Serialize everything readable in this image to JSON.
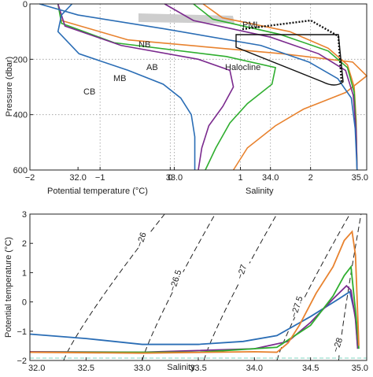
{
  "chart_data": [
    {
      "type": "line",
      "panel": "top",
      "ylabel": "Pressure (dbar)",
      "x_bottom_label": "Potential temperature (°C)",
      "x_top_label": "Salinity",
      "temperature_ticks": [
        "−2",
        "−1",
        "0",
        "1",
        "2"
      ],
      "salinity_ticks": [
        "32.0",
        "33.0",
        "34.0",
        "35.0"
      ],
      "pressure_ticks": [
        "0",
        "200",
        "400",
        "600"
      ],
      "ylim": [
        0,
        600
      ],
      "temperature_xlim": [
        -2,
        2.8
      ],
      "salinity_xlim": [
        31.5,
        35
      ],
      "grid": true,
      "annotations": [
        {
          "text": "NB",
          "color": "#e8822e"
        },
        {
          "text": "AB",
          "color": "#2fae2f"
        },
        {
          "text": "MB",
          "color": "#7b2a8e"
        },
        {
          "text": "CB",
          "color": "#2a6db5"
        },
        {
          "text": "PML",
          "color": "#111111"
        },
        {
          "text": "Halocline",
          "color": "#111111"
        }
      ],
      "series": [
        {
          "color": "#e8822e",
          "temperature_profile": [
            [
              -1.6,
              0
            ],
            [
              -1.55,
              60
            ],
            [
              -0.6,
              130
            ],
            [
              1.6,
              180
            ],
            [
              2.6,
              210
            ],
            [
              2.8,
              260
            ],
            [
              2.5,
              320
            ],
            [
              1.9,
              380
            ],
            [
              1.5,
              440
            ],
            [
              1.1,
              520
            ],
            [
              0.9,
              600
            ]
          ],
          "salinity_profile": [
            [
              33.3,
              0
            ],
            [
              33.5,
              50
            ],
            [
              34.2,
              100
            ],
            [
              34.6,
              160
            ],
            [
              34.8,
              220
            ],
            [
              34.87,
              300
            ],
            [
              34.89,
              420
            ],
            [
              34.9,
              600
            ]
          ]
        },
        {
          "color": "#2fae2f",
          "temperature_profile": [
            [
              -1.6,
              0
            ],
            [
              -1.55,
              70
            ],
            [
              -0.8,
              140
            ],
            [
              0.8,
              190
            ],
            [
              1.5,
              230
            ],
            [
              1.45,
              290
            ],
            [
              1.1,
              360
            ],
            [
              0.85,
              430
            ],
            [
              0.65,
              520
            ],
            [
              0.5,
              600
            ]
          ],
          "salinity_profile": [
            [
              33.2,
              0
            ],
            [
              33.4,
              55
            ],
            [
              34.1,
              110
            ],
            [
              34.6,
              170
            ],
            [
              34.8,
              230
            ],
            [
              34.87,
              320
            ],
            [
              34.89,
              450
            ],
            [
              34.9,
              600
            ]
          ]
        },
        {
          "color": "#7b2a8e",
          "temperature_profile": [
            [
              -1.6,
              0
            ],
            [
              -1.5,
              80
            ],
            [
              -0.7,
              150
            ],
            [
              0.4,
              200
            ],
            [
              0.85,
              240
            ],
            [
              0.9,
              300
            ],
            [
              0.75,
              370
            ],
            [
              0.55,
              440
            ],
            [
              0.45,
              520
            ],
            [
              0.4,
              600
            ]
          ],
          "salinity_profile": [
            [
              32.9,
              0
            ],
            [
              33.2,
              60
            ],
            [
              34.0,
              120
            ],
            [
              34.5,
              180
            ],
            [
              34.78,
              240
            ],
            [
              34.86,
              330
            ],
            [
              34.89,
              460
            ],
            [
              34.9,
              600
            ]
          ]
        },
        {
          "color": "#2a6db5",
          "temperature_profile": [
            [
              -1.4,
              0
            ],
            [
              -1.55,
              40
            ],
            [
              -1.6,
              100
            ],
            [
              -1.3,
              180
            ],
            [
              -0.6,
              240
            ],
            [
              -0.1,
              290
            ],
            [
              0.15,
              340
            ],
            [
              0.3,
              400
            ],
            [
              0.35,
              480
            ],
            [
              0.35,
              600
            ]
          ],
          "salinity_profile": [
            [
              31.6,
              0
            ],
            [
              32.0,
              40
            ],
            [
              32.9,
              90
            ],
            [
              33.9,
              150
            ],
            [
              34.4,
              210
            ],
            [
              34.7,
              270
            ],
            [
              34.84,
              340
            ],
            [
              34.88,
              450
            ],
            [
              34.9,
              600
            ]
          ]
        }
      ]
    },
    {
      "type": "line",
      "panel": "bottom",
      "xlabel": "Salinity",
      "ylabel": "Potential temperature (°C)",
      "xlim": [
        32.0,
        35.0
      ],
      "ylim": [
        -2,
        3
      ],
      "x_ticks": [
        "32.0",
        "32.5",
        "33.0",
        "33.5",
        "34.0",
        "34.5",
        "35.0"
      ],
      "y_ticks": [
        "3",
        "2",
        "1",
        "0",
        "−1",
        "−2"
      ],
      "density_contours": [
        "26",
        "26.5",
        "27",
        "27.5",
        "28"
      ],
      "series": [
        {
          "color": "#2a6db5",
          "points": [
            [
              32.0,
              -1.1
            ],
            [
              32.5,
              -1.25
            ],
            [
              33.0,
              -1.45
            ],
            [
              33.5,
              -1.45
            ],
            [
              33.9,
              -1.35
            ],
            [
              34.2,
              -1.15
            ],
            [
              34.5,
              -0.5
            ],
            [
              34.75,
              0.1
            ],
            [
              34.85,
              0.35
            ],
            [
              34.9,
              -0.5
            ],
            [
              34.92,
              -1.6
            ]
          ]
        },
        {
          "color": "#7b2a8e",
          "points": [
            [
              32.0,
              -1.7
            ],
            [
              33.0,
              -1.72
            ],
            [
              34.0,
              -1.6
            ],
            [
              34.3,
              -1.35
            ],
            [
              34.5,
              -0.7
            ],
            [
              34.7,
              0.1
            ],
            [
              34.82,
              0.55
            ],
            [
              34.86,
              0.4
            ],
            [
              34.9,
              -0.6
            ],
            [
              34.92,
              -1.6
            ]
          ]
        },
        {
          "color": "#2fae2f",
          "points": [
            [
              32.0,
              -1.72
            ],
            [
              33.5,
              -1.72
            ],
            [
              34.2,
              -1.55
            ],
            [
              34.5,
              -0.8
            ],
            [
              34.7,
              0.2
            ],
            [
              34.8,
              0.9
            ],
            [
              34.86,
              1.2
            ],
            [
              34.9,
              -0.3
            ],
            [
              34.93,
              -1.6
            ]
          ]
        },
        {
          "color": "#e8822e",
          "points": [
            [
              32.0,
              -1.72
            ],
            [
              33.0,
              -1.75
            ],
            [
              34.0,
              -1.7
            ],
            [
              34.2,
              -1.72
            ],
            [
              34.3,
              -1.4
            ],
            [
              34.4,
              -0.8
            ],
            [
              34.55,
              0.3
            ],
            [
              34.7,
              1.2
            ],
            [
              34.8,
              2.1
            ],
            [
              34.87,
              2.4
            ],
            [
              34.9,
              1.6
            ],
            [
              34.93,
              -1.5
            ]
          ]
        }
      ]
    }
  ]
}
